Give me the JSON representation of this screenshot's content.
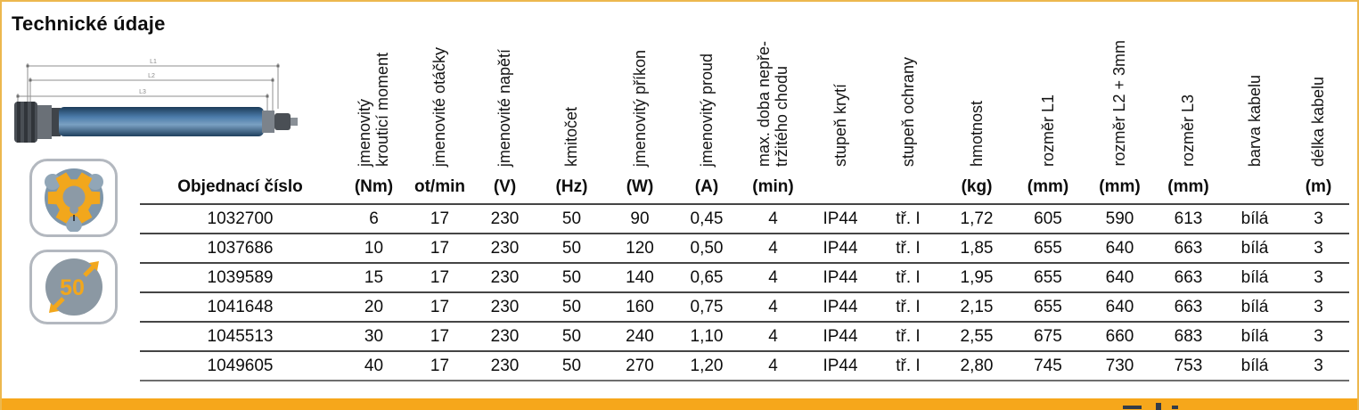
{
  "title": "Technické údaje",
  "drawing": {
    "dim_labels": [
      "L1",
      "L2",
      "L3"
    ]
  },
  "icons": {
    "diameter_badge": "50"
  },
  "table": {
    "order_col_header": "Objednací číslo",
    "columns": [
      {
        "label": "jmenovitý\nkrouticí moment",
        "unit": "(Nm)"
      },
      {
        "label": "jmenovité otáčky",
        "unit": "ot/min"
      },
      {
        "label": "jmenovité napětí",
        "unit": "(V)"
      },
      {
        "label": "kmitočet",
        "unit": "(Hz)"
      },
      {
        "label": "jmenovitý příkon",
        "unit": "(W)"
      },
      {
        "label": "jmenovitý proud",
        "unit": "(A)"
      },
      {
        "label": "max. doba nepře-\ntržitého chodu",
        "unit": "(min)"
      },
      {
        "label": "stupeň krytí",
        "unit": ""
      },
      {
        "label": "stupeň ochrany",
        "unit": ""
      },
      {
        "label": "hmotnost",
        "unit": "(kg)"
      },
      {
        "label": "rozměr L1",
        "unit": "(mm)"
      },
      {
        "label": "rozměr L2 + 3mm",
        "unit": "(mm)"
      },
      {
        "label": "rozměr L3",
        "unit": "(mm)"
      },
      {
        "label": "barva kabelu",
        "unit": ""
      },
      {
        "label": "délka kabelu",
        "unit": "(m)"
      }
    ],
    "rows": [
      [
        "1032700",
        "6",
        "17",
        "230",
        "50",
        "90",
        "0,45",
        "4",
        "IP44",
        "tř. I",
        "1,72",
        "605",
        "590",
        "613",
        "bílá",
        "3"
      ],
      [
        "1037686",
        "10",
        "17",
        "230",
        "50",
        "120",
        "0,50",
        "4",
        "IP44",
        "tř. I",
        "1,85",
        "655",
        "640",
        "663",
        "bílá",
        "3"
      ],
      [
        "1039589",
        "15",
        "17",
        "230",
        "50",
        "140",
        "0,65",
        "4",
        "IP44",
        "tř. I",
        "1,95",
        "655",
        "640",
        "663",
        "bílá",
        "3"
      ],
      [
        "1041648",
        "20",
        "17",
        "230",
        "50",
        "160",
        "0,75",
        "4",
        "IP44",
        "tř. I",
        "2,15",
        "655",
        "640",
        "663",
        "bílá",
        "3"
      ],
      [
        "1045513",
        "30",
        "17",
        "230",
        "50",
        "240",
        "1,10",
        "4",
        "IP44",
        "tř. I",
        "2,55",
        "675",
        "660",
        "683",
        "bílá",
        "3"
      ],
      [
        "1049605",
        "40",
        "17",
        "230",
        "50",
        "270",
        "1,20",
        "4",
        "IP44",
        "tř. I",
        "2,80",
        "745",
        "730",
        "753",
        "bílá",
        "3"
      ]
    ]
  },
  "colors": {
    "frame_border": "#ecb84e",
    "bottom_bar": "#f6a71b",
    "accent_orange": "#f2a71c",
    "icon_blue_gray": "#7e96aa",
    "icon_gray": "#8b98a3",
    "tube_blue": "#4d7dac"
  }
}
